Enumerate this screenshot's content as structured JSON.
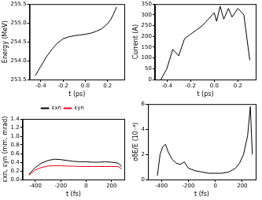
{
  "chart_data": [
    {
      "type": "line",
      "x_label": "t (ps)",
      "y_label": "Energy (MeV)",
      "grid": false,
      "xlim": [
        -0.5,
        0.35
      ],
      "ylim": [
        253.5,
        255.5
      ],
      "xticks": [
        -0.4,
        -0.2,
        {
          "value": 0,
          "label": "0.0"
        },
        0.2
      ],
      "yticks": [
        253.5,
        {
          "value": 254,
          "label": "254.0"
        },
        254.5,
        {
          "value": 255,
          "label": "255.0"
        },
        255.5
      ],
      "x": [
        -0.45,
        -0.42,
        -0.4,
        -0.37,
        -0.35,
        -0.32,
        -0.3,
        -0.27,
        -0.25,
        -0.22,
        -0.2,
        -0.15,
        -0.1,
        -0.05,
        0,
        0.05,
        0.1,
        0.15,
        0.2,
        0.23,
        0.25,
        0.27,
        0.28
      ],
      "series": [
        {
          "color": "#000000",
          "values": [
            253.6,
            253.75,
            253.85,
            254.0,
            254.1,
            254.22,
            254.3,
            254.4,
            254.47,
            254.53,
            254.58,
            254.63,
            254.66,
            254.68,
            254.7,
            254.73,
            254.78,
            254.85,
            254.98,
            255.1,
            255.22,
            255.35,
            255.42
          ]
        }
      ]
    },
    {
      "type": "line",
      "x_label": "t (ps)",
      "y_label": "Current (A)",
      "grid": false,
      "xlim": [
        -0.5,
        0.35
      ],
      "ylim": [
        0,
        350
      ],
      "xticks": [
        -0.4,
        -0.2,
        {
          "value": 0,
          "label": "0.0"
        },
        0.2
      ],
      "yticks": [
        0,
        50,
        100,
        150,
        200,
        250,
        300,
        350
      ],
      "x": [
        -0.45,
        -0.4,
        -0.35,
        -0.3,
        -0.25,
        -0.2,
        -0.15,
        -0.1,
        -0.05,
        0,
        0.02,
        0.05,
        0.08,
        0.12,
        0.15,
        0.2,
        0.25,
        0.3
      ],
      "series": [
        {
          "color": "#000000",
          "values": [
            0,
            50,
            140,
            110,
            190,
            210,
            230,
            250,
            280,
            310,
            270,
            340,
            280,
            330,
            290,
            330,
            300,
            90
          ]
        }
      ]
    },
    {
      "type": "line",
      "x_label": "t (fs)",
      "y_label": "εxn, εyn (mm. mrad)",
      "grid": false,
      "legend": "top",
      "xlim": [
        -500,
        300
      ],
      "ylim": [
        0,
        1.4
      ],
      "xticks": [
        -400,
        -200,
        0,
        200
      ],
      "yticks": [
        {
          "value": 0,
          "label": "0.0"
        },
        0.2,
        0.4,
        0.6,
        0.8,
        {
          "value": 1,
          "label": "1.0"
        },
        1.2,
        1.4
      ],
      "x": [
        -450,
        -400,
        -350,
        -300,
        -250,
        -200,
        -150,
        -100,
        -50,
        0,
        50,
        100,
        150,
        200,
        250,
        280
      ],
      "series": [
        {
          "name": "εxn",
          "color": "#000000",
          "values": [
            0.12,
            0.28,
            0.38,
            0.44,
            0.47,
            0.46,
            0.44,
            0.42,
            0.41,
            0.41,
            0.4,
            0.4,
            0.41,
            0.4,
            0.38,
            0.3
          ]
        },
        {
          "name": "εyn",
          "color": "#e8001c",
          "values": [
            0.1,
            0.22,
            0.28,
            0.31,
            0.32,
            0.32,
            0.31,
            0.31,
            0.3,
            0.3,
            0.3,
            0.3,
            0.3,
            0.3,
            0.3,
            0.25
          ]
        }
      ]
    },
    {
      "type": "line",
      "x_label": "t (fs)",
      "y_label": "σδE/E (10⁻⁴)",
      "grid": false,
      "xlim": [
        -500,
        300
      ],
      "ylim": [
        0,
        6
      ],
      "xticks": [
        -400,
        -200,
        0,
        200
      ],
      "yticks": [
        0,
        2,
        4,
        6
      ],
      "x": [
        -430,
        -410,
        -390,
        -370,
        -350,
        -320,
        -290,
        -260,
        -230,
        -200,
        -150,
        -100,
        -50,
        0,
        50,
        100,
        150,
        180,
        210,
        240,
        260,
        275
      ],
      "series": [
        {
          "color": "#000000",
          "values": [
            0.3,
            2.0,
            2.6,
            2.8,
            2.2,
            1.6,
            1.3,
            1.2,
            1.4,
            0.9,
            0.7,
            0.6,
            0.5,
            0.5,
            0.5,
            0.6,
            0.9,
            1.3,
            2.0,
            3.5,
            5.8,
            2.0
          ]
        }
      ]
    }
  ]
}
